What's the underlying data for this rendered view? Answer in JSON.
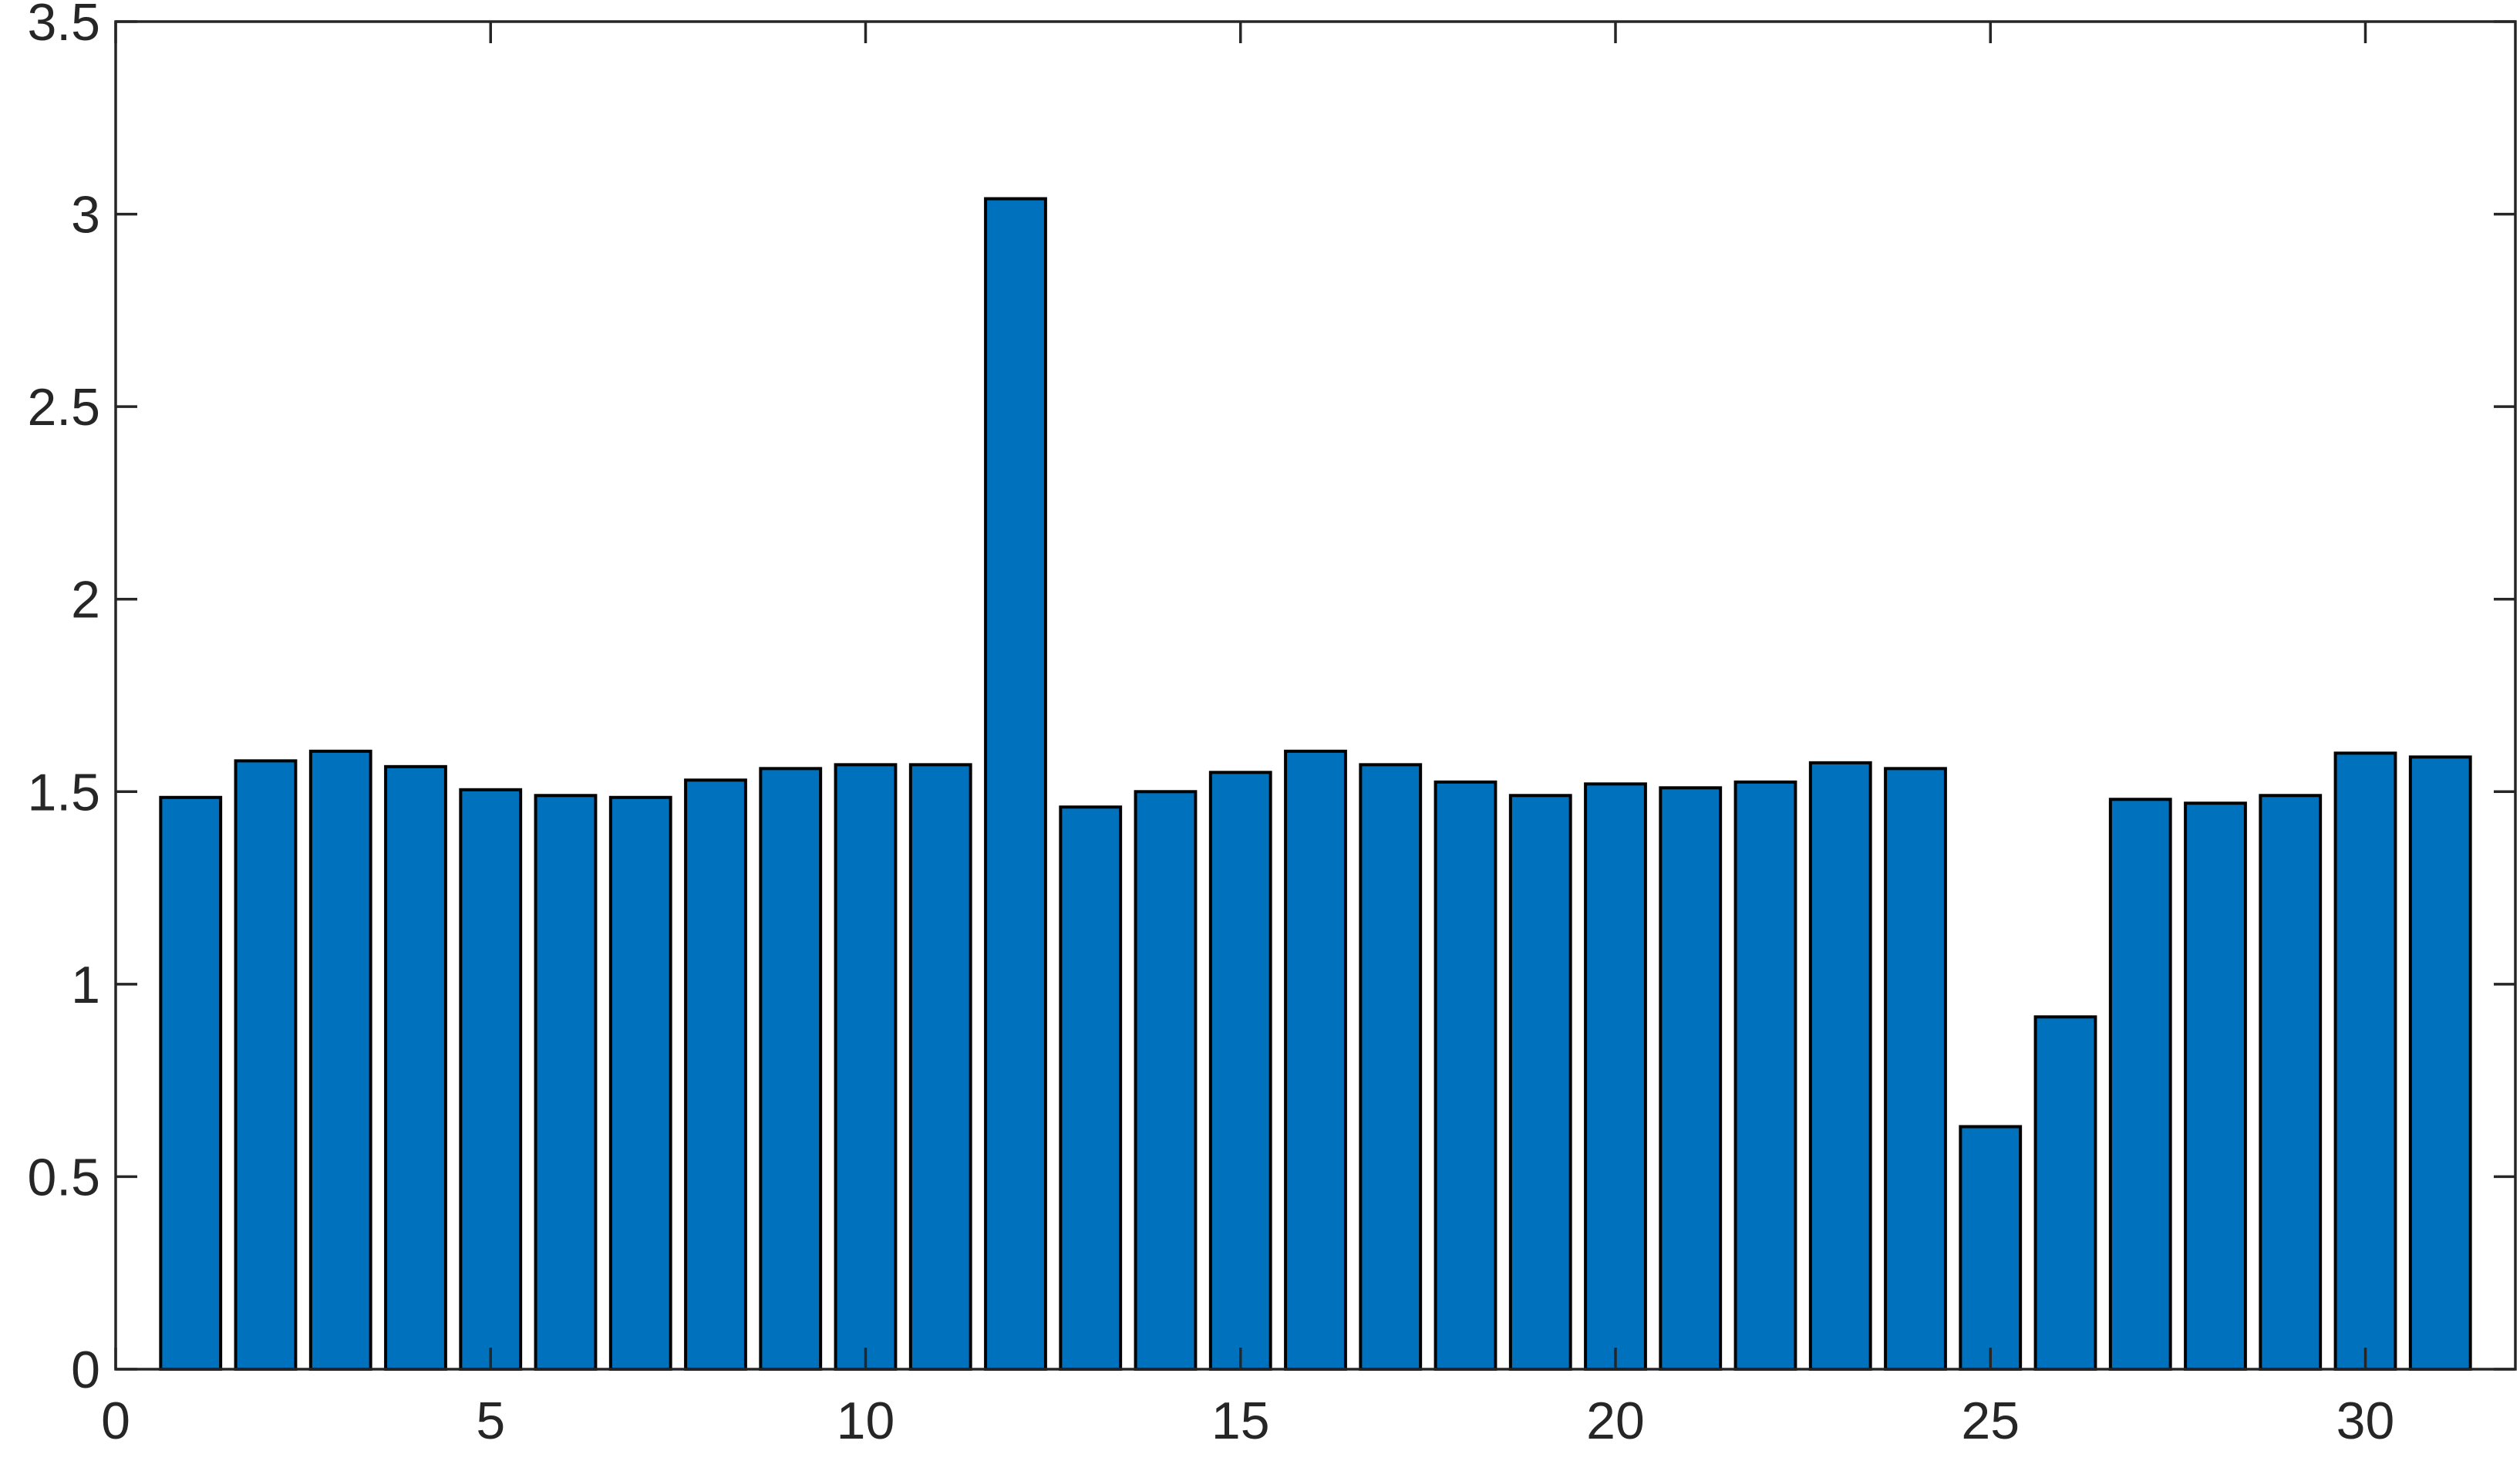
{
  "chart_data": {
    "type": "bar",
    "title": "",
    "xlabel": "",
    "ylabel": "",
    "x": [
      1,
      2,
      3,
      4,
      5,
      6,
      7,
      8,
      9,
      10,
      11,
      12,
      13,
      14,
      15,
      16,
      17,
      18,
      19,
      20,
      21,
      22,
      23,
      24,
      25,
      26,
      27,
      28,
      29,
      30,
      31
    ],
    "values": [
      1.485,
      1.58,
      1.605,
      1.565,
      1.505,
      1.49,
      1.485,
      1.53,
      1.56,
      1.57,
      1.57,
      3.04,
      1.46,
      1.5,
      1.55,
      1.605,
      1.57,
      1.525,
      1.49,
      1.52,
      1.51,
      1.525,
      1.575,
      1.56,
      0.63,
      0.915,
      1.48,
      1.47,
      1.49,
      1.6,
      1.59
    ],
    "xlim": [
      0,
      32
    ],
    "ylim": [
      0,
      3.5
    ],
    "xticks": [
      0,
      5,
      10,
      15,
      20,
      25,
      30
    ],
    "xtick_labels": [
      "0",
      "5",
      "10",
      "15",
      "20",
      "25",
      "30"
    ],
    "yticks": [
      0,
      0.5,
      1,
      1.5,
      2,
      2.5,
      3,
      3.5
    ],
    "ytick_labels": [
      "0",
      "0.5",
      "1",
      "1.5",
      "2",
      "2.5",
      "3",
      "3.5"
    ],
    "bar_color": "#0072BD",
    "bar_edge_color": "#000000",
    "grid": false,
    "legend": "none"
  }
}
